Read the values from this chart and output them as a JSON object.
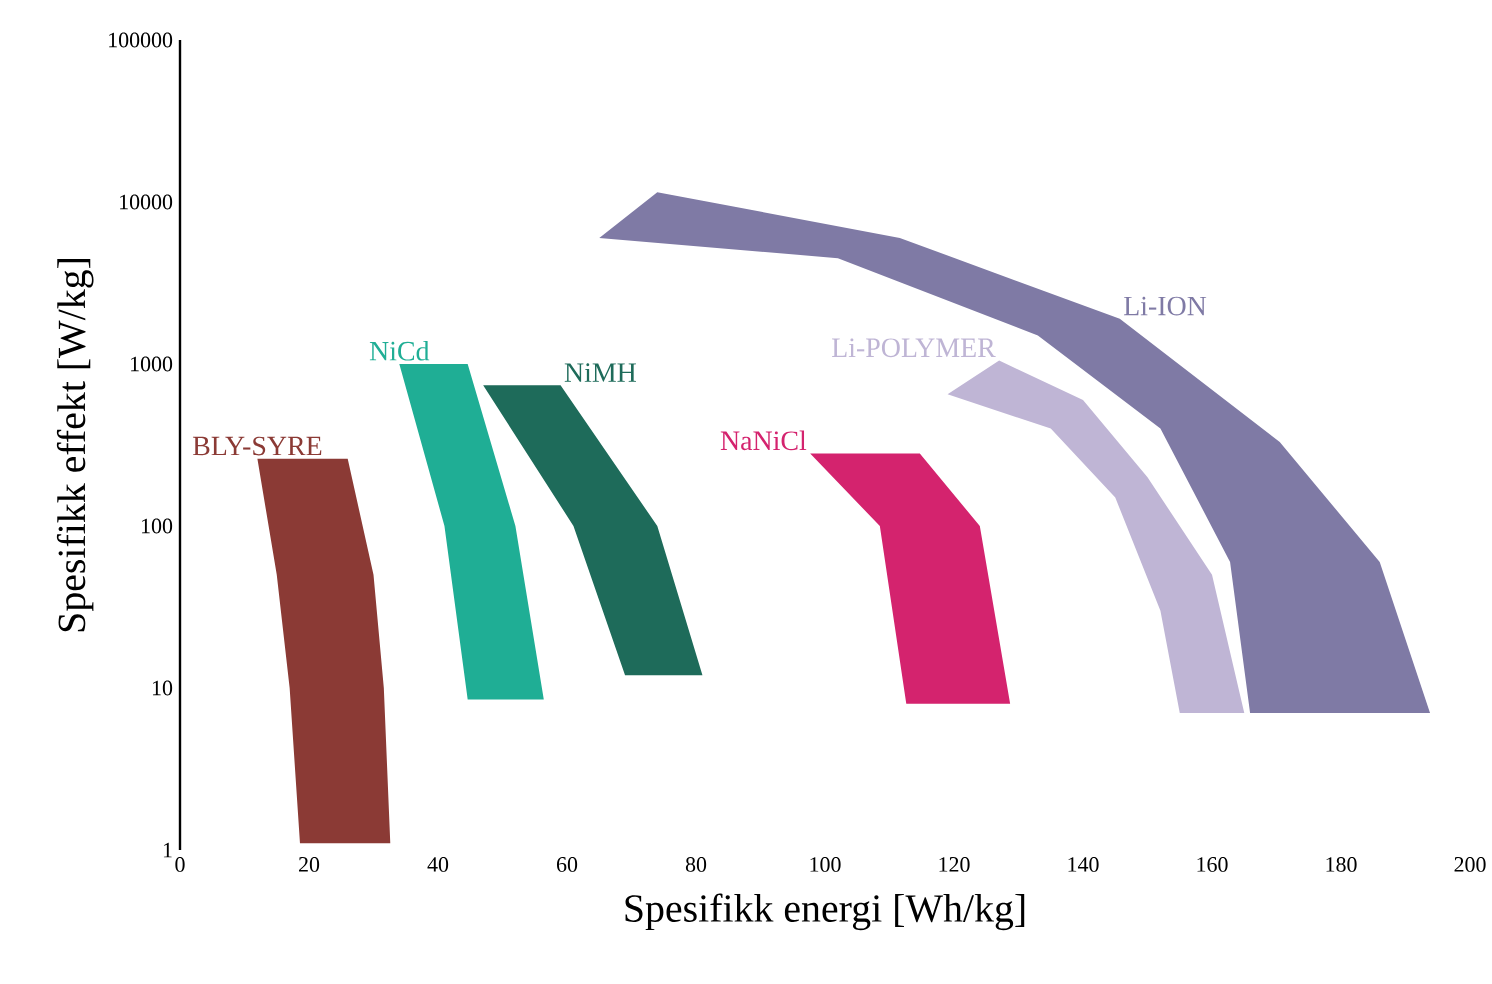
{
  "chart_data": {
    "type": "area",
    "xlabel": "Spesifikk energi [Wh/kg]",
    "ylabel": "Spesifikk effekt  [W/kg]",
    "xlim": [
      0,
      200
    ],
    "xticks": [
      0,
      20,
      40,
      60,
      80,
      100,
      120,
      140,
      160,
      180,
      200
    ],
    "ylim": [
      1,
      100000
    ],
    "yticks": [
      1,
      10,
      100,
      1000,
      10000,
      100000
    ],
    "log": "y",
    "grid": false,
    "series": [
      {
        "name": "BLY-SYRE",
        "color": "#8b3a35",
        "x": [
          12,
          15,
          17,
          18.6,
          32.6,
          31.6,
          30,
          26
        ],
        "values": [
          260,
          50,
          10,
          1.1,
          1.1,
          10,
          50,
          260
        ]
      },
      {
        "name": "NiCd",
        "color": "#1fae95",
        "x": [
          34,
          41,
          44.6,
          56.4,
          52,
          44.6
        ],
        "values": [
          1000,
          100,
          8.5,
          8.5,
          100,
          1000
        ]
      },
      {
        "name": "NiMH",
        "color": "#1e6b5a",
        "x": [
          59,
          74,
          81,
          69,
          61,
          47
        ],
        "values": [
          740,
          100,
          12,
          12,
          100,
          740
        ]
      },
      {
        "name": "NaNiCl",
        "color": "#d4236e",
        "x": [
          97.7,
          108.5,
          112.6,
          128.7,
          124,
          114.7
        ],
        "values": [
          280,
          100,
          8,
          8,
          100,
          280
        ]
      },
      {
        "name": "Li-POLYMER",
        "color": "#bfb5d5",
        "x": [
          127,
          140,
          150,
          160,
          165,
          155,
          152,
          145,
          135,
          119
        ],
        "values": [
          1050,
          600,
          200,
          50,
          7,
          7,
          30,
          150,
          400,
          650
        ]
      },
      {
        "name": "Li-ION",
        "color": "#7f7aa5",
        "x": [
          145.7,
          170.5,
          186,
          193.8,
          165.9,
          162.8,
          152,
          133,
          102,
          65,
          74,
          111.6
        ],
        "values": [
          1900,
          330,
          60,
          7,
          7,
          60,
          400,
          1500,
          4500,
          6000,
          11500,
          6000
        ]
      }
    ]
  }
}
